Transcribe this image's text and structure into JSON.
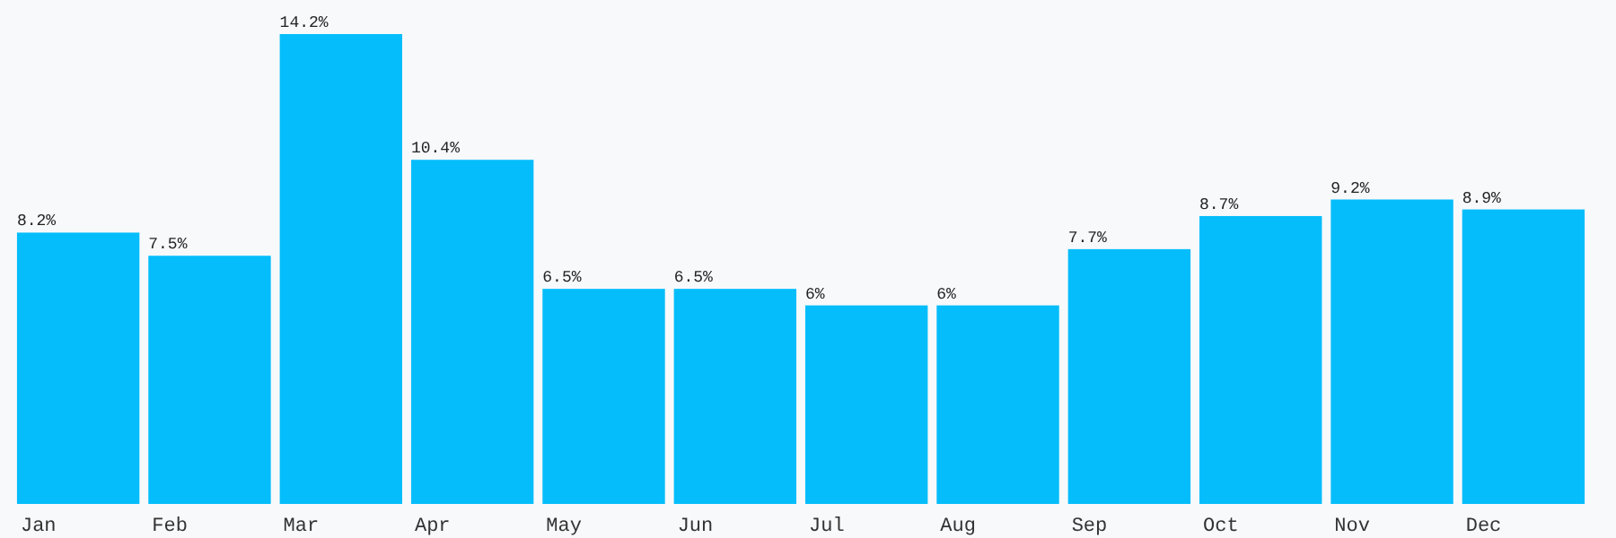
{
  "chart_data": {
    "type": "bar",
    "categories": [
      "Jan",
      "Feb",
      "Mar",
      "Apr",
      "May",
      "Jun",
      "Jul",
      "Aug",
      "Sep",
      "Oct",
      "Nov",
      "Dec"
    ],
    "values": [
      8.2,
      7.5,
      14.2,
      10.4,
      6.5,
      6.5,
      6,
      6,
      7.7,
      8.7,
      9.2,
      8.9
    ],
    "value_labels": [
      "8.2%",
      "7.5%",
      "14.2%",
      "10.4%",
      "6.5%",
      "6.5%",
      "6%",
      "6%",
      "7.7%",
      "8.7%",
      "9.2%",
      "8.9%"
    ],
    "color": "#05bdfb"
  }
}
